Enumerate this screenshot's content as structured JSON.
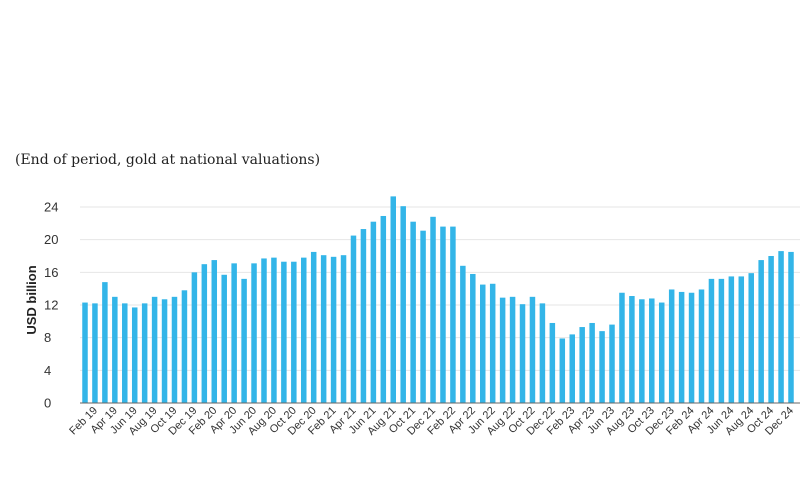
{
  "chart_data": {
    "type": "bar",
    "subtitle": "(End of period, gold at national valuations)",
    "ylabel": "USD billion",
    "ylim": [
      0,
      24
    ],
    "yticks": [
      0,
      4,
      8,
      12,
      16,
      20,
      24
    ],
    "grid": true,
    "bar_color": "#33b5e8",
    "x_tick_labels": [
      "Feb 19",
      "Apr 19",
      "Jun 19",
      "Aug 19",
      "Oct 19",
      "Dec 19",
      "Feb 20",
      "Apr 20",
      "Jun 20",
      "Aug 20",
      "Oct 20",
      "Dec 20",
      "Feb 21",
      "Apr 21",
      "Jun 21",
      "Aug 21",
      "Oct 21",
      "Dec 21",
      "Feb 22",
      "Apr 22",
      "Jun 22",
      "Aug 22",
      "Oct 22",
      "Dec 22",
      "Feb 23",
      "Apr 23",
      "Jun 23",
      "Aug 23",
      "Oct 23",
      "Dec 23",
      "Feb 24",
      "Apr 24",
      "Jun 24",
      "Aug 24",
      "Oct 24",
      "Dec 24"
    ],
    "categories": [
      "Jan 19",
      "Feb 19",
      "Mar 19",
      "Apr 19",
      "May 19",
      "Jun 19",
      "Jul 19",
      "Aug 19",
      "Sep 19",
      "Oct 19",
      "Nov 19",
      "Dec 19",
      "Jan 20",
      "Feb 20",
      "Mar 20",
      "Apr 20",
      "May 20",
      "Jun 20",
      "Jul 20",
      "Aug 20",
      "Sep 20",
      "Oct 20",
      "Nov 20",
      "Dec 20",
      "Jan 21",
      "Feb 21",
      "Mar 21",
      "Apr 21",
      "May 21",
      "Jun 21",
      "Jul 21",
      "Aug 21",
      "Sep 21",
      "Oct 21",
      "Nov 21",
      "Dec 21",
      "Jan 22",
      "Feb 22",
      "Mar 22",
      "Apr 22",
      "May 22",
      "Jun 22",
      "Jul 22",
      "Aug 22",
      "Sep 22",
      "Oct 22",
      "Nov 22",
      "Dec 22",
      "Jan 23",
      "Feb 23",
      "Mar 23",
      "Apr 23",
      "May 23",
      "Jun 23",
      "Jul 23",
      "Aug 23",
      "Sep 23",
      "Oct 23",
      "Nov 23",
      "Dec 23",
      "Jan 24",
      "Feb 24",
      "Mar 24",
      "Apr 24",
      "May 24",
      "Jun 24",
      "Jul 24",
      "Aug 24",
      "Sep 24",
      "Oct 24",
      "Nov 24",
      "Dec 24"
    ],
    "values": [
      12.3,
      12.2,
      14.8,
      13.0,
      12.2,
      11.7,
      12.2,
      13.0,
      12.7,
      13.0,
      13.8,
      16.0,
      17.0,
      17.5,
      15.7,
      17.1,
      15.2,
      17.1,
      17.7,
      17.8,
      17.3,
      17.3,
      17.8,
      18.5,
      18.1,
      17.9,
      18.1,
      20.5,
      21.3,
      22.2,
      22.9,
      25.3,
      24.1,
      22.2,
      21.1,
      22.8,
      21.6,
      21.6,
      16.8,
      15.8,
      14.5,
      14.6,
      12.9,
      13.0,
      12.1,
      13.0,
      12.2,
      9.8,
      7.9,
      8.4,
      9.3,
      9.8,
      8.8,
      9.6,
      13.5,
      13.1,
      12.7,
      12.8,
      12.3,
      13.9,
      13.6,
      13.5,
      13.9,
      15.2,
      15.2,
      15.5,
      15.5,
      15.9,
      17.5,
      18.0,
      18.6,
      18.5
    ]
  }
}
